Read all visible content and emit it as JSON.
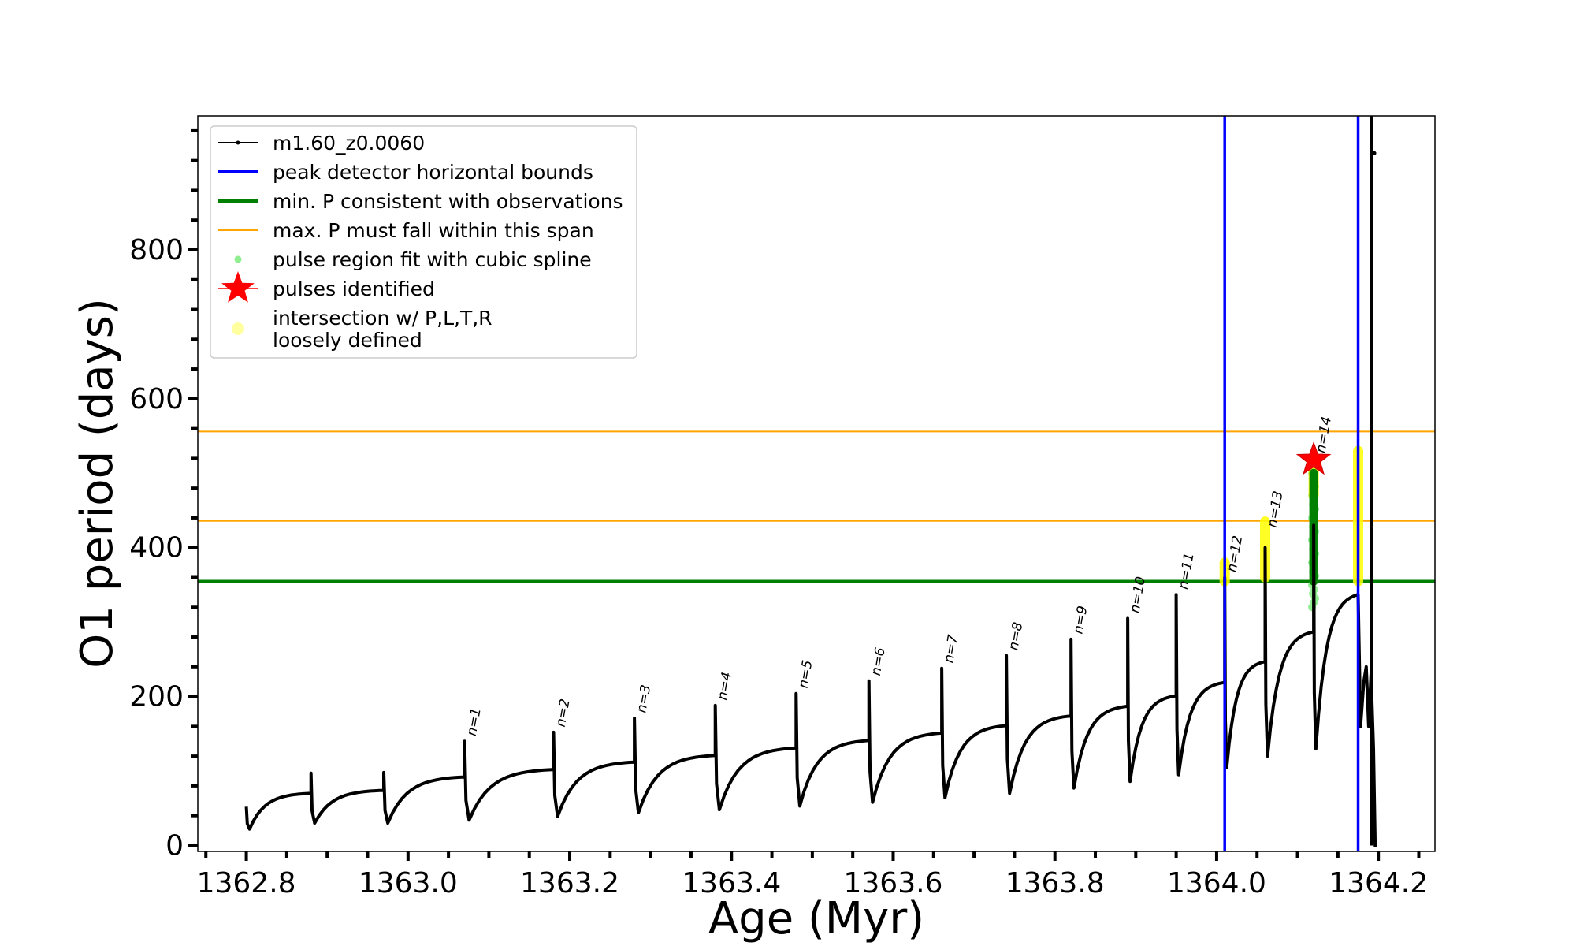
{
  "chart_data": {
    "type": "line",
    "xlabel": "Age (Myr)",
    "ylabel": "O1 period (days)",
    "xlim": [
      1362.74,
      1364.27
    ],
    "ylim": [
      -8,
      980
    ],
    "x_ticks": [
      1362.8,
      1363.0,
      1363.2,
      1363.4,
      1363.6,
      1363.8,
      1364.0,
      1364.2
    ],
    "x_tick_labels": [
      "1362.8",
      "1363.0",
      "1363.2",
      "1363.4",
      "1363.6",
      "1363.8",
      "1364.0",
      "1364.2"
    ],
    "y_ticks": [
      0,
      200,
      400,
      600,
      800
    ],
    "y_tick_labels": [
      "0",
      "200",
      "400",
      "600",
      "800"
    ],
    "legend": {
      "placement": "upper-left",
      "entries": [
        {
          "label": "m1.60_z0.0060",
          "kind": "line-dot",
          "color": "#000000"
        },
        {
          "label": "peak detector horizontal bounds",
          "kind": "line",
          "color": "#0000ff"
        },
        {
          "label": "min. P consistent with observations",
          "kind": "line",
          "color": "#008000"
        },
        {
          "label": "max. P must fall within this span",
          "kind": "thin-line",
          "color": "#ffa500"
        },
        {
          "label": "pulse region fit with cubic spline",
          "kind": "dot",
          "color": "#90ee90"
        },
        {
          "label": "pulses identified",
          "kind": "star",
          "color": "#ff0000"
        },
        {
          "label": [
            "intersection w/ P,L,T,R",
            "loosely defined"
          ],
          "kind": "big-dot",
          "color": "#ffffa0"
        }
      ]
    },
    "colors": {
      "model": "#000000",
      "bounds": "#0000ff",
      "min_p": "#008000",
      "max_p": "#ffa500",
      "spline": "#90ee90",
      "star": "#ff0000",
      "intersection": "#ffff00",
      "fit": "#008000"
    },
    "model_series": {
      "name": "m1.60_z0.0060",
      "segments": [
        {
          "start": 1362.8,
          "end": 1362.88,
          "spike": 52,
          "trough": 22,
          "base_end": 70
        },
        {
          "start": 1362.88,
          "end": 1362.97,
          "spike": 97,
          "trough": 30,
          "base_end": 74
        },
        {
          "start": 1362.97,
          "end": 1363.07,
          "spike": 98,
          "trough": 30,
          "base_end": 92
        },
        {
          "start": 1363.07,
          "end": 1363.18,
          "spike": 140,
          "trough": 34,
          "base_end": 102
        },
        {
          "start": 1363.18,
          "end": 1363.28,
          "spike": 152,
          "trough": 39,
          "base_end": 112
        },
        {
          "start": 1363.28,
          "end": 1363.38,
          "spike": 171,
          "trough": 44,
          "base_end": 121
        },
        {
          "start": 1363.38,
          "end": 1363.48,
          "spike": 188,
          "trough": 48,
          "base_end": 131
        },
        {
          "start": 1363.48,
          "end": 1363.57,
          "spike": 204,
          "trough": 53,
          "base_end": 141
        },
        {
          "start": 1363.57,
          "end": 1363.66,
          "spike": 221,
          "trough": 58,
          "base_end": 151
        },
        {
          "start": 1363.66,
          "end": 1363.74,
          "spike": 238,
          "trough": 64,
          "base_end": 161
        },
        {
          "start": 1363.74,
          "end": 1363.82,
          "spike": 255,
          "trough": 70,
          "base_end": 174
        },
        {
          "start": 1363.82,
          "end": 1363.89,
          "spike": 277,
          "trough": 77,
          "base_end": 187
        },
        {
          "start": 1363.89,
          "end": 1363.95,
          "spike": 305,
          "trough": 86,
          "base_end": 201
        },
        {
          "start": 1363.95,
          "end": 1364.01,
          "spike": 337,
          "trough": 95,
          "base_end": 219
        },
        {
          "start": 1364.01,
          "end": 1364.06,
          "spike": 360,
          "trough": 105,
          "base_end": 247
        },
        {
          "start": 1364.06,
          "end": 1364.12,
          "spike": 400,
          "trough": 120,
          "base_end": 287
        },
        {
          "start": 1364.12,
          "end": 1364.175,
          "spike": 430,
          "trough": 130,
          "base_end": 337
        }
      ],
      "tail": [
        [
          1364.175,
          337
        ],
        [
          1364.178,
          160
        ],
        [
          1364.182,
          220
        ],
        [
          1364.185,
          240
        ],
        [
          1364.188,
          160
        ],
        [
          1364.191,
          230
        ],
        [
          1364.194,
          130
        ],
        [
          1364.196,
          0
        ],
        [
          1364.198,
          0
        ]
      ],
      "final_vertical": {
        "x": 1364.192,
        "y_from": 0,
        "y_to": 980
      },
      "isolated_point": [
        1364.195,
        930
      ]
    },
    "pulse_labels": [
      {
        "label": "n=1",
        "x": 1363.07,
        "y": 140
      },
      {
        "label": "n=2",
        "x": 1363.18,
        "y": 152
      },
      {
        "label": "n=3",
        "x": 1363.28,
        "y": 171
      },
      {
        "label": "n=4",
        "x": 1363.38,
        "y": 188
      },
      {
        "label": "n=5",
        "x": 1363.48,
        "y": 204
      },
      {
        "label": "n=6",
        "x": 1363.57,
        "y": 221
      },
      {
        "label": "n=7",
        "x": 1363.66,
        "y": 238
      },
      {
        "label": "n=8",
        "x": 1363.74,
        "y": 255
      },
      {
        "label": "n=9",
        "x": 1363.82,
        "y": 277
      },
      {
        "label": "n=10",
        "x": 1363.89,
        "y": 305
      },
      {
        "label": "n=11",
        "x": 1363.95,
        "y": 337
      },
      {
        "label": "n=12",
        "x": 1364.01,
        "y": 360
      },
      {
        "label": "n=13",
        "x": 1364.06,
        "y": 420
      },
      {
        "label": "n=14",
        "x": 1364.12,
        "y": 520
      }
    ],
    "peak_detector_bounds": [
      1364.01,
      1364.175
    ],
    "min_p_consistent": 355,
    "max_p_span": [
      436,
      556
    ],
    "spline_regions": [
      {
        "x": 1364.12,
        "y_from": 320,
        "y_to": 510
      }
    ],
    "green_fit_region": {
      "x": 1364.12,
      "y_from": 355,
      "y_to": 500
    },
    "intersection_regions": [
      {
        "x": 1364.01,
        "y_from": 355,
        "y_to": 380
      },
      {
        "x": 1364.06,
        "y_from": 360,
        "y_to": 435
      },
      {
        "x": 1364.12,
        "y_from": 470,
        "y_to": 520
      },
      {
        "x": 1364.175,
        "y_from": 355,
        "y_to": 530
      }
    ],
    "pulses_identified": [
      {
        "x": 1364.12,
        "y": 518
      }
    ]
  }
}
